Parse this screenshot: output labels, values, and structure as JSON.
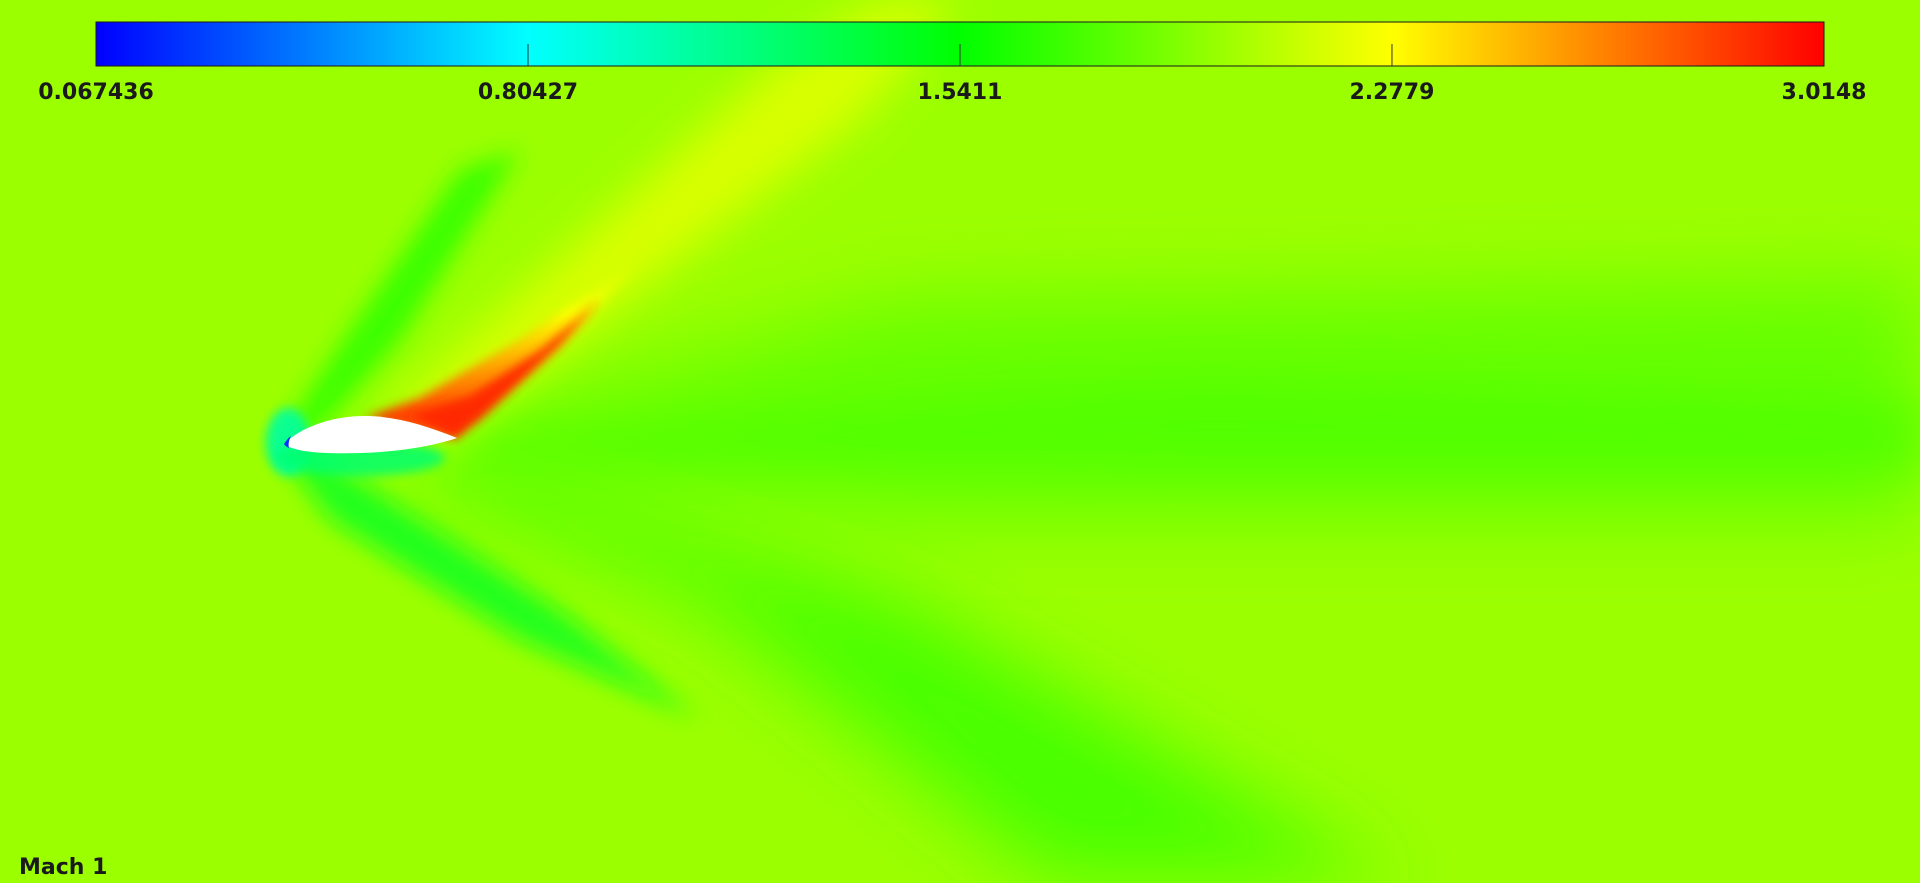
{
  "chart_data": {
    "type": "heatmap",
    "title": "",
    "colorbar": {
      "min": 0.067436,
      "max": 3.0148,
      "ticks": [
        0.067436,
        0.80427,
        1.5411,
        2.2779,
        3.0148
      ],
      "tick_labels": [
        "0.067436",
        "0.80427",
        "1.5411",
        "2.2779",
        "3.0148"
      ],
      "placement": "top",
      "colors": [
        "#0000ff",
        "#00ffff",
        "#00ff00",
        "#ffff00",
        "#ff0000"
      ]
    },
    "caption": "Mach 1",
    "field": {
      "background_color": "#9cff00",
      "object_color": "#ffffff"
    }
  }
}
